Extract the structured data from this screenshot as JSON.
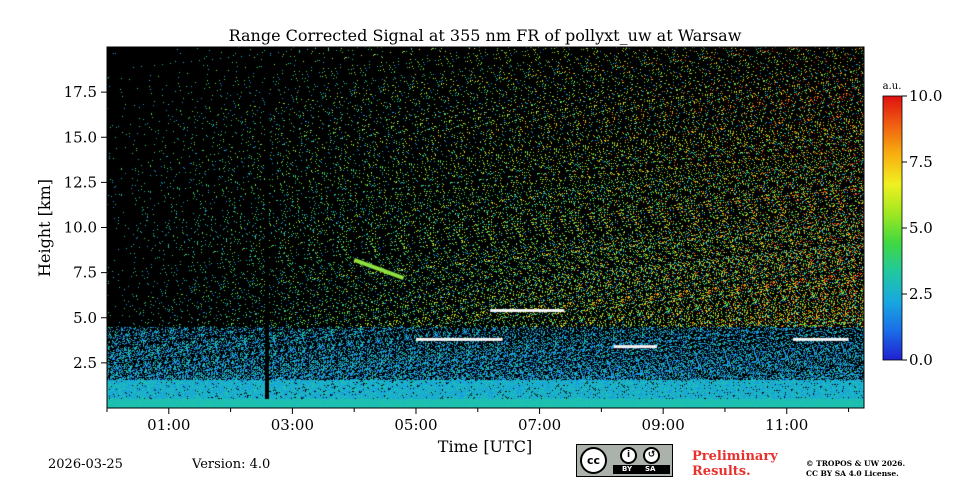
{
  "chart_data": {
    "type": "heatmap",
    "title": "Range Corrected Signal at 355 nm FR of pollyxt_uw at Warsaw",
    "xlabel": "Time [UTC]",
    "ylabel": "Height [km]",
    "xlim_hours": [
      0.0,
      12.25
    ],
    "ylim": [
      0.0,
      20.0
    ],
    "x_ticks": [
      {
        "value": 1,
        "label": "01:00"
      },
      {
        "value": 3,
        "label": "03:00"
      },
      {
        "value": 5,
        "label": "05:00"
      },
      {
        "value": 7,
        "label": "07:00"
      },
      {
        "value": 9,
        "label": "09:00"
      },
      {
        "value": 11,
        "label": "11:00"
      }
    ],
    "x_minor_ticks": [
      0,
      2,
      4,
      6,
      8,
      10,
      12
    ],
    "y_ticks": [
      {
        "value": 2.5,
        "label": "2.5"
      },
      {
        "value": 5.0,
        "label": "5.0"
      },
      {
        "value": 7.5,
        "label": "7.5"
      },
      {
        "value": 10.0,
        "label": "10.0"
      },
      {
        "value": 12.5,
        "label": "12.5"
      },
      {
        "value": 15.0,
        "label": "15.0"
      },
      {
        "value": 17.5,
        "label": "17.5"
      }
    ],
    "colorbar": {
      "label": "a.u.",
      "range": [
        0.0,
        10.0
      ],
      "ticks": [
        {
          "value": 0.0,
          "label": "0.0"
        },
        {
          "value": 2.5,
          "label": "2.5"
        },
        {
          "value": 5.0,
          "label": "5.0"
        },
        {
          "value": 7.5,
          "label": "7.5"
        },
        {
          "value": 10.0,
          "label": "10.0"
        }
      ],
      "colormap": [
        "#2020d0",
        "#1a6ee8",
        "#18a8e0",
        "#20c8a0",
        "#40d840",
        "#a0e820",
        "#f0f020",
        "#f8b010",
        "#f06010",
        "#e01010"
      ]
    },
    "features": {
      "boundary_layer_top_km": 0.5,
      "data_gap_hours": [
        2.55,
        2.62
      ],
      "thin_cloud_layers": [
        {
          "t_start": 5.0,
          "t_end": 6.4,
          "height_km": 3.8
        },
        {
          "t_start": 6.2,
          "t_end": 7.4,
          "height_km": 5.4
        },
        {
          "t_start": 8.2,
          "t_end": 8.9,
          "height_km": 3.4
        },
        {
          "t_start": 11.1,
          "t_end": 12.0,
          "height_km": 3.8
        }
      ],
      "aerosol_layer": {
        "t_start": 4.0,
        "t_end": 4.8,
        "height_km_start": 8.2,
        "height_km_end": 7.2
      }
    }
  },
  "footer": {
    "date": "2026-03-25",
    "version": "Version: 4.0",
    "license_badge": {
      "cc": "cc",
      "by": "BY",
      "sa": "SA"
    },
    "preliminary_line1": "Preliminary",
    "preliminary_line2": "Results.",
    "copyright_line1": "© TROPOS & UW 2026.",
    "copyright_line2": "CC BY SA 4.0 License."
  }
}
